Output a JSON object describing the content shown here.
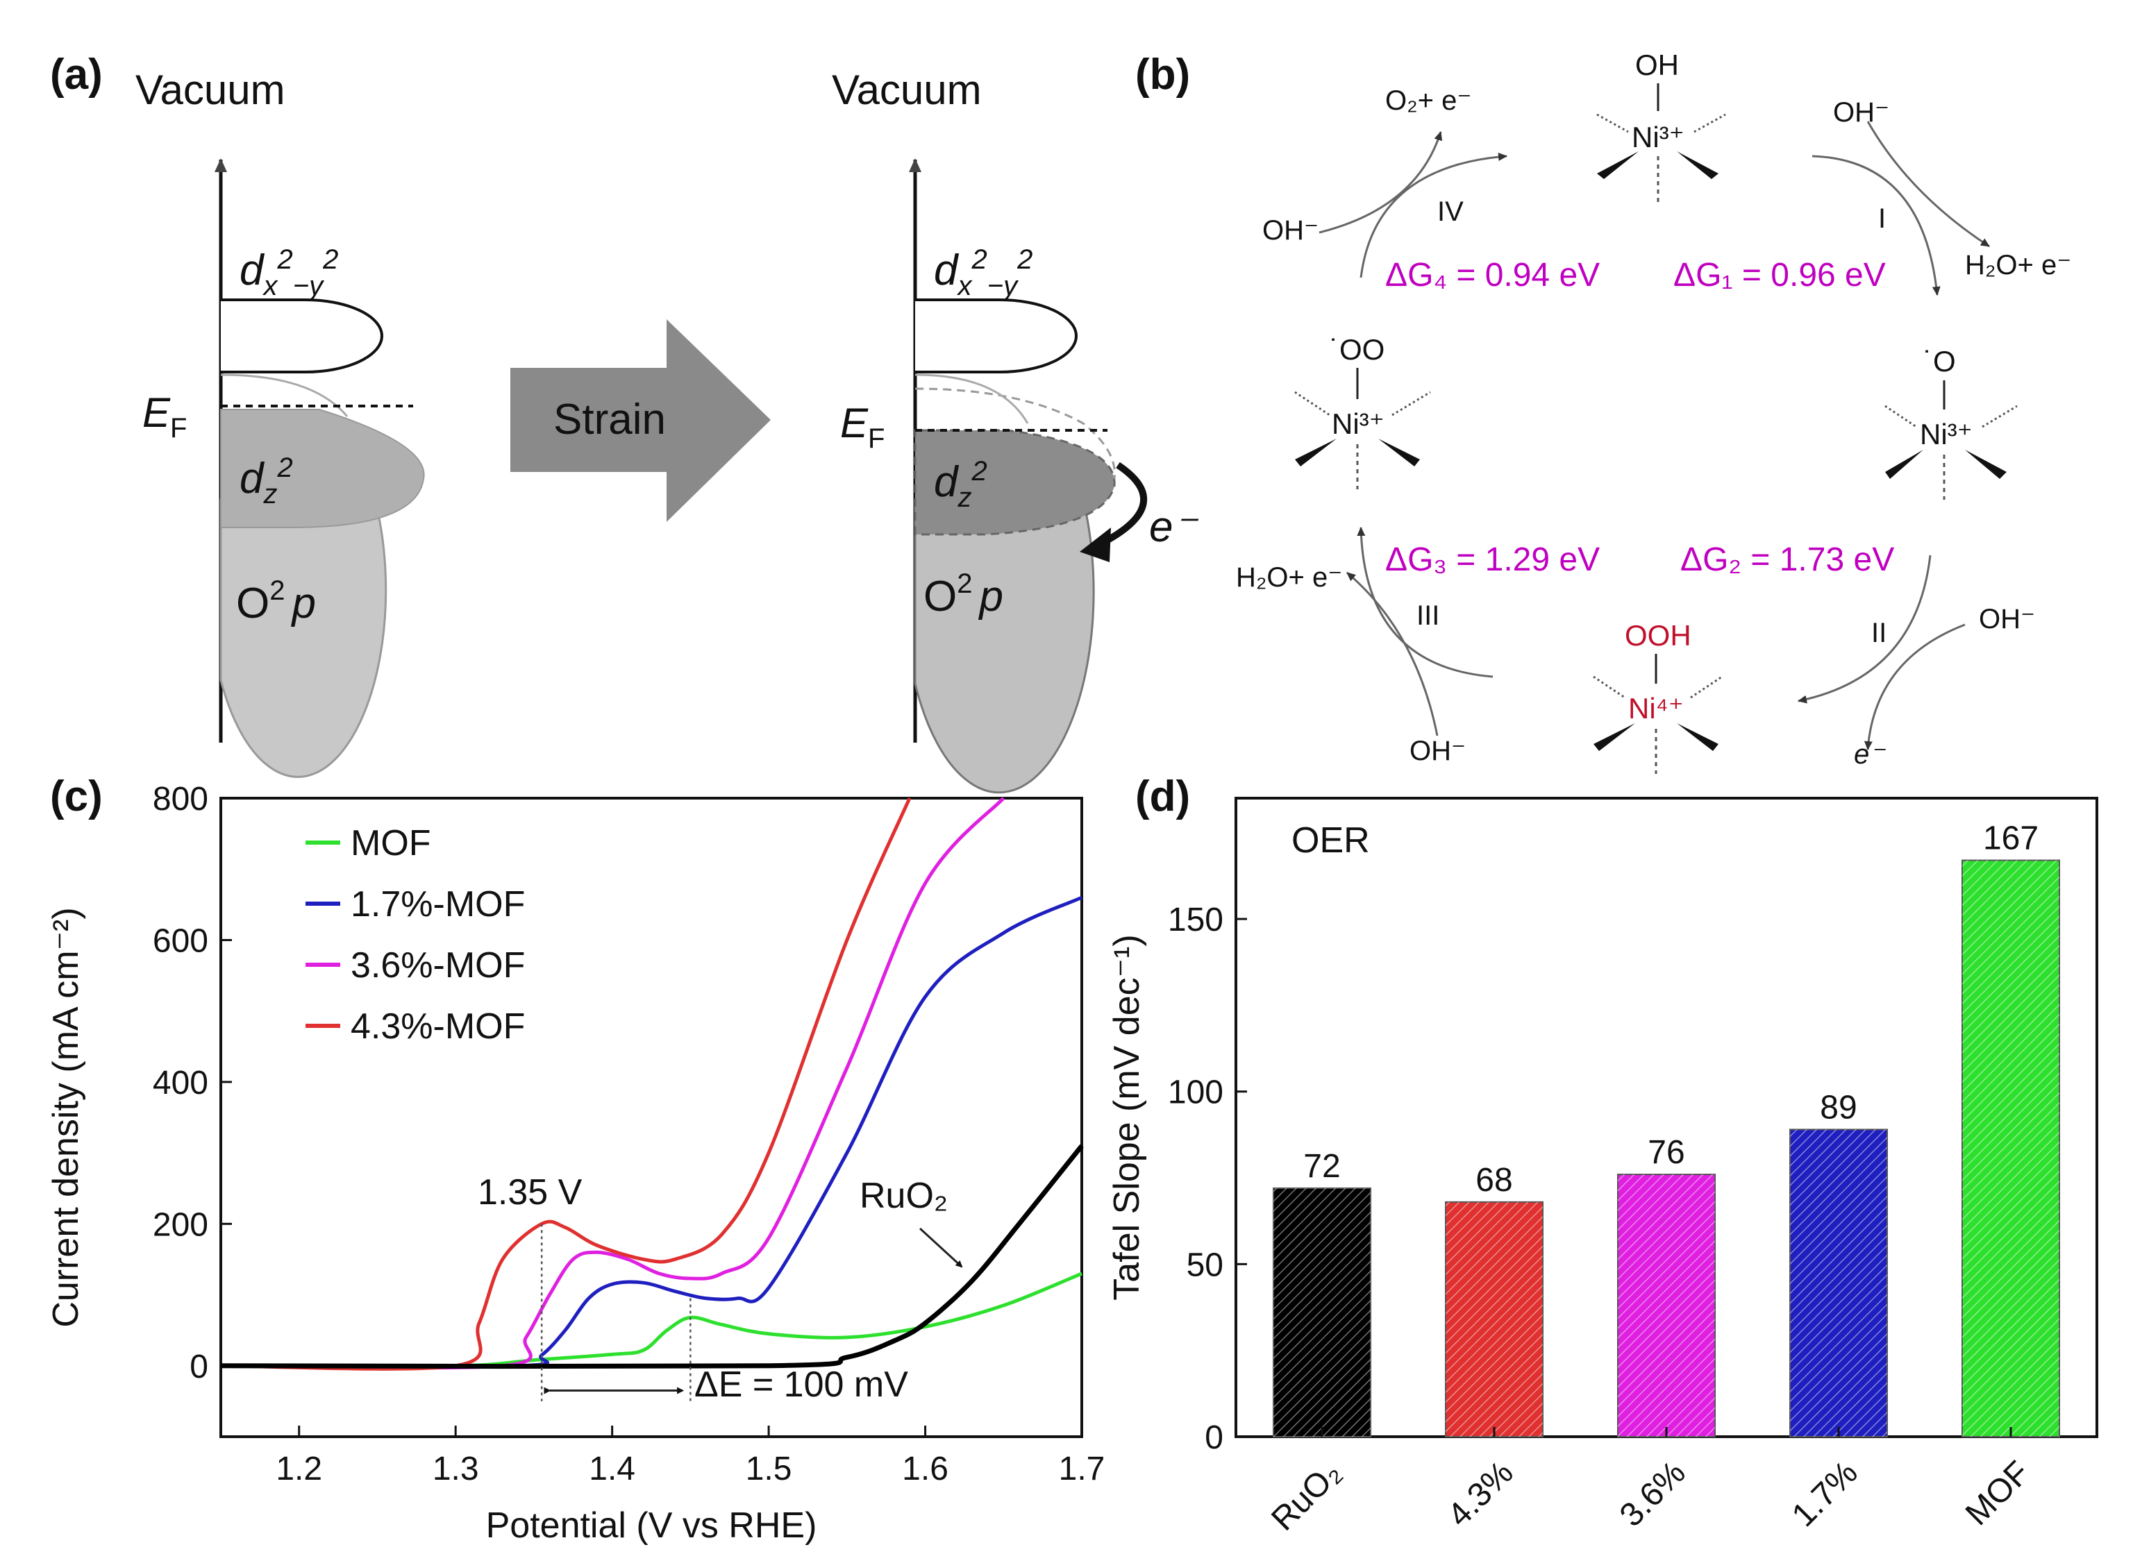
{
  "panel_labels": {
    "a": "(a)",
    "b": "(b)",
    "c": "(c)",
    "d": "(d)"
  },
  "panel_a": {
    "vacuum_left": "Vacuum",
    "vacuum_right": "Vacuum",
    "ef": "E",
    "ef_sub": "F",
    "strain": "Strain",
    "dx": "d",
    "dx_sub": "x",
    "dx_sup": "2",
    "dx_mid": "−y",
    "dx_sup2": "2",
    "dz": "d",
    "dz_sub": "z",
    "dz_sup": "2",
    "o2p_o": "O",
    "o2p_sup": "2",
    "o2p_p": "p",
    "electron": "e⁻"
  },
  "panel_b": {
    "dg1": "ΔG₁ = 0.96 eV",
    "dg2": "ΔG₂ = 1.73 eV",
    "dg3": "ΔG₃ = 1.29 eV",
    "dg4": "ΔG₄ = 0.94 eV",
    "step_1": "I",
    "step_2": "II",
    "step_3": "III",
    "step_4": "IV",
    "top_ligand": "OH",
    "top_metal": "Ni³⁺",
    "right_ligand": "˙O",
    "right_metal": "Ni³⁺",
    "bottom_ligand": "OOH",
    "bottom_metal": "Ni⁴⁺",
    "left_ligand": "˙OO",
    "left_metal": "Ni³⁺",
    "oh_top_right": "OH⁻",
    "h2o_right": "H₂O+ e⁻",
    "oh_right_bottom": "OH⁻",
    "e_bottom_right": "e⁻",
    "oh_bottom_left": "OH⁻",
    "h2o_left": "H₂O+ e⁻",
    "oh_left_top": "OH⁻",
    "o2_top": "O₂+ e⁻"
  },
  "panel_c_text": {
    "peak_label": "1.35 V",
    "delta_e": "ΔE = 100 mV",
    "ruo2_label": "RuO₂"
  },
  "colors": {
    "MOF": "#2ee02e",
    "1.7%-MOF": "#1f1fc0",
    "3.6%-MOF": "#e020e0",
    "4.3%-MOF": "#e03030",
    "RuO2": "#000000",
    "magenta_text": "#c000c0",
    "red_text": "#c0102a"
  },
  "chart_data": [
    {
      "type": "line",
      "xlabel": "Potential (V vs RHE)",
      "ylabel": "Current density (mA cm⁻²)",
      "xlim": [
        1.15,
        1.7
      ],
      "ylim": [
        -100,
        800
      ],
      "xticks": [
        "1.2",
        "1.3",
        "1.4",
        "1.5",
        "1.6",
        "1.7"
      ],
      "yticks": [
        "0",
        "200",
        "400",
        "600",
        "800"
      ],
      "legend": "top-left",
      "series": [
        {
          "name": "MOF",
          "x": [
            1.15,
            1.3,
            1.35,
            1.4,
            1.42,
            1.435,
            1.45,
            1.47,
            1.5,
            1.55,
            1.6,
            1.65,
            1.7
          ],
          "y": [
            0,
            0,
            8,
            16,
            22,
            50,
            68,
            58,
            45,
            40,
            55,
            85,
            130
          ]
        },
        {
          "name": "1.7%-MOF",
          "x": [
            1.15,
            1.34,
            1.355,
            1.37,
            1.385,
            1.4,
            1.42,
            1.44,
            1.46,
            1.48,
            1.5,
            1.55,
            1.6,
            1.65,
            1.7
          ],
          "y": [
            0,
            0,
            15,
            50,
            95,
            115,
            117,
            105,
            95,
            95,
            110,
            300,
            520,
            610,
            660
          ]
        },
        {
          "name": "3.6%-MOF",
          "x": [
            1.15,
            1.33,
            1.345,
            1.36,
            1.375,
            1.39,
            1.41,
            1.43,
            1.45,
            1.47,
            1.5,
            1.55,
            1.6,
            1.65
          ],
          "y": [
            0,
            0,
            40,
            100,
            150,
            160,
            150,
            130,
            123,
            130,
            180,
            420,
            680,
            800
          ]
        },
        {
          "name": "4.3%-MOF",
          "x": [
            1.15,
            1.3,
            1.315,
            1.33,
            1.355,
            1.37,
            1.39,
            1.42,
            1.44,
            1.47,
            1.5,
            1.55,
            1.59
          ],
          "y": [
            0,
            0,
            60,
            150,
            200,
            195,
            170,
            150,
            150,
            185,
            300,
            600,
            800
          ]
        },
        {
          "name": "RuO2",
          "x": [
            1.15,
            1.5,
            1.55,
            1.58,
            1.6,
            1.63,
            1.66,
            1.7
          ],
          "y": [
            0,
            0,
            12,
            35,
            60,
            120,
            200,
            310
          ]
        }
      ]
    },
    {
      "type": "bar",
      "title": "OER",
      "ylabel": "Tafel Slope (mV dec⁻¹)",
      "ylim": [
        0,
        185
      ],
      "yticks": [
        "0",
        "50",
        "100",
        "150"
      ],
      "categories": [
        "RuO₂",
        "4.3%",
        "3.6%",
        "1.7%",
        "MOF"
      ],
      "values": [
        72,
        68,
        76,
        89,
        167
      ],
      "value_labels": [
        "72",
        "68",
        "76",
        "89",
        "167"
      ]
    }
  ]
}
